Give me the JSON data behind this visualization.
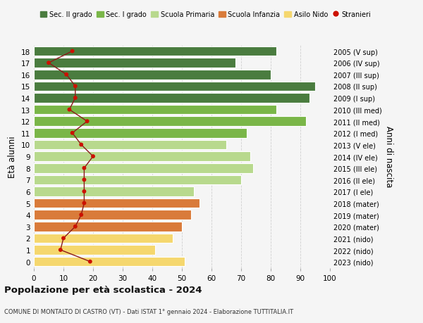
{
  "ages": [
    18,
    17,
    16,
    15,
    14,
    13,
    12,
    11,
    10,
    9,
    8,
    7,
    6,
    5,
    4,
    3,
    2,
    1,
    0
  ],
  "bar_values": [
    82,
    68,
    80,
    95,
    93,
    82,
    92,
    72,
    65,
    73,
    74,
    70,
    54,
    56,
    53,
    50,
    47,
    41,
    51
  ],
  "stranieri_values": [
    13,
    5,
    11,
    14,
    14,
    12,
    18,
    13,
    16,
    20,
    17,
    17,
    17,
    17,
    16,
    14,
    10,
    9,
    19
  ],
  "bar_colors": [
    "#4a7c3f",
    "#4a7c3f",
    "#4a7c3f",
    "#4a7c3f",
    "#4a7c3f",
    "#7ab648",
    "#7ab648",
    "#7ab648",
    "#b8d98d",
    "#b8d98d",
    "#b8d98d",
    "#b8d98d",
    "#b8d98d",
    "#d97b3a",
    "#d97b3a",
    "#d97b3a",
    "#f5d76e",
    "#f5d76e",
    "#f5d76e"
  ],
  "right_labels": [
    "2005 (V sup)",
    "2006 (IV sup)",
    "2007 (III sup)",
    "2008 (II sup)",
    "2009 (I sup)",
    "2010 (III med)",
    "2011 (II med)",
    "2012 (I med)",
    "2013 (V ele)",
    "2014 (IV ele)",
    "2015 (III ele)",
    "2016 (II ele)",
    "2017 (I ele)",
    "2018 (mater)",
    "2019 (mater)",
    "2020 (mater)",
    "2021 (nido)",
    "2022 (nido)",
    "2023 (nido)"
  ],
  "legend_labels": [
    "Sec. II grado",
    "Sec. I grado",
    "Scuola Primaria",
    "Scuola Infanzia",
    "Asilo Nido",
    "Stranieri"
  ],
  "legend_colors": [
    "#4a7c3f",
    "#7ab648",
    "#b8d98d",
    "#d97b3a",
    "#f5d76e",
    "#cc1100"
  ],
  "ylabel": "Età alunni",
  "right_ylabel": "Anni di nascita",
  "title": "Popolazione per età scolastica - 2024",
  "subtitle": "COMUNE DI MONTALTO DI CASTRO (VT) - Dati ISTAT 1° gennaio 2024 - Elaborazione TUTTITALIA.IT",
  "xlim": [
    0,
    100
  ],
  "xticks": [
    0,
    10,
    20,
    30,
    40,
    50,
    60,
    70,
    80,
    90,
    100
  ],
  "bg_color": "#f5f5f5",
  "line_color": "#8b1a1a",
  "dot_color": "#cc1100"
}
